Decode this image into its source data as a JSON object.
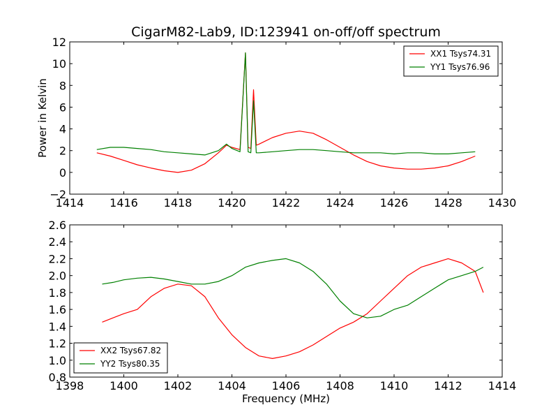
{
  "chart_data": [
    {
      "type": "line",
      "title": "CigarM82-Lab9, ID:123941 on-off/off spectrum",
      "xlabel": "",
      "ylabel": "Power in Kelvin",
      "xlim": [
        1414,
        1430
      ],
      "ylim": [
        -2,
        12
      ],
      "xticks": [
        "1414",
        "1416",
        "1418",
        "1420",
        "1422",
        "1424",
        "1426",
        "1428",
        "1430"
      ],
      "yticks": [
        "−2",
        "0",
        "2",
        "4",
        "6",
        "8",
        "10",
        "12"
      ],
      "grid": false,
      "legend_position": "top-right",
      "series": [
        {
          "name": "XX1 Tsys74.31",
          "color": "#ff0000",
          "x": [
            1415.0,
            1415.5,
            1416.0,
            1416.5,
            1417.0,
            1417.5,
            1418.0,
            1418.5,
            1419.0,
            1419.5,
            1419.8,
            1420.0,
            1420.3,
            1420.5,
            1420.6,
            1420.7,
            1420.8,
            1420.9,
            1421.0,
            1421.5,
            1422.0,
            1422.5,
            1423.0,
            1423.5,
            1424.0,
            1424.5,
            1425.0,
            1425.5,
            1426.0,
            1426.5,
            1427.0,
            1427.5,
            1428.0,
            1428.5,
            1429.0
          ],
          "y": [
            1.8,
            1.5,
            1.1,
            0.7,
            0.4,
            0.15,
            0.0,
            0.2,
            0.8,
            1.8,
            2.5,
            2.3,
            2.1,
            11.0,
            2.3,
            2.2,
            7.6,
            2.5,
            2.6,
            3.2,
            3.6,
            3.8,
            3.6,
            3.0,
            2.3,
            1.6,
            1.0,
            0.6,
            0.4,
            0.3,
            0.3,
            0.4,
            0.6,
            1.0,
            1.5
          ]
        },
        {
          "name": "YY1 Tsys76.96",
          "color": "#008000",
          "x": [
            1415.0,
            1415.5,
            1416.0,
            1416.5,
            1417.0,
            1417.5,
            1418.0,
            1418.5,
            1419.0,
            1419.5,
            1419.8,
            1420.0,
            1420.3,
            1420.5,
            1420.6,
            1420.7,
            1420.8,
            1420.9,
            1421.0,
            1421.5,
            1422.0,
            1422.5,
            1423.0,
            1423.5,
            1424.0,
            1424.5,
            1425.0,
            1425.5,
            1426.0,
            1426.5,
            1427.0,
            1427.5,
            1428.0,
            1428.5,
            1429.0
          ],
          "y": [
            2.1,
            2.3,
            2.3,
            2.2,
            2.1,
            1.9,
            1.8,
            1.7,
            1.6,
            2.0,
            2.6,
            2.2,
            1.9,
            11.0,
            1.9,
            1.8,
            6.6,
            1.8,
            1.8,
            1.9,
            2.0,
            2.1,
            2.1,
            2.0,
            1.9,
            1.8,
            1.8,
            1.8,
            1.7,
            1.8,
            1.8,
            1.7,
            1.7,
            1.8,
            1.9
          ]
        }
      ]
    },
    {
      "type": "line",
      "title": "",
      "xlabel": "Frequency (MHz)",
      "ylabel": "",
      "xlim": [
        1398,
        1414
      ],
      "ylim": [
        0.8,
        2.6
      ],
      "xticks": [
        "1398",
        "1400",
        "1402",
        "1404",
        "1406",
        "1408",
        "1410",
        "1412",
        "1414"
      ],
      "yticks": [
        "0.8",
        "1.0",
        "1.2",
        "1.4",
        "1.6",
        "1.8",
        "2.0",
        "2.2",
        "2.4",
        "2.6"
      ],
      "grid": false,
      "legend_position": "bottom-left",
      "series": [
        {
          "name": "XX2 Tsys67.82",
          "color": "#ff0000",
          "x": [
            1399.2,
            1399.6,
            1400.0,
            1400.5,
            1401.0,
            1401.5,
            1402.0,
            1402.5,
            1403.0,
            1403.5,
            1404.0,
            1404.5,
            1405.0,
            1405.5,
            1406.0,
            1406.5,
            1407.0,
            1407.5,
            1408.0,
            1408.5,
            1409.0,
            1409.5,
            1410.0,
            1410.5,
            1411.0,
            1411.5,
            1412.0,
            1412.5,
            1413.0,
            1413.3
          ],
          "y": [
            1.45,
            1.5,
            1.55,
            1.6,
            1.75,
            1.85,
            1.9,
            1.88,
            1.75,
            1.5,
            1.3,
            1.15,
            1.05,
            1.02,
            1.05,
            1.1,
            1.18,
            1.28,
            1.38,
            1.45,
            1.55,
            1.7,
            1.85,
            2.0,
            2.1,
            2.15,
            2.2,
            2.15,
            2.05,
            1.8
          ]
        },
        {
          "name": "YY2 Tsys80.35",
          "color": "#008000",
          "x": [
            1399.2,
            1399.6,
            1400.0,
            1400.5,
            1401.0,
            1401.5,
            1402.0,
            1402.5,
            1403.0,
            1403.5,
            1404.0,
            1404.5,
            1405.0,
            1405.5,
            1406.0,
            1406.5,
            1407.0,
            1407.5,
            1408.0,
            1408.5,
            1409.0,
            1409.5,
            1410.0,
            1410.5,
            1411.0,
            1411.5,
            1412.0,
            1412.5,
            1413.0,
            1413.3
          ],
          "y": [
            1.9,
            1.92,
            1.95,
            1.97,
            1.98,
            1.96,
            1.93,
            1.9,
            1.9,
            1.93,
            2.0,
            2.1,
            2.15,
            2.18,
            2.2,
            2.15,
            2.05,
            1.9,
            1.7,
            1.55,
            1.5,
            1.52,
            1.6,
            1.65,
            1.75,
            1.85,
            1.95,
            2.0,
            2.05,
            2.1
          ]
        }
      ]
    }
  ]
}
